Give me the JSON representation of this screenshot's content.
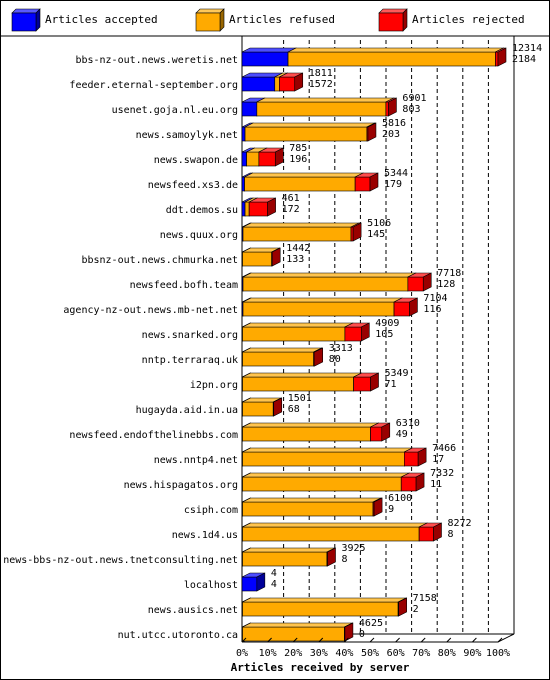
{
  "chart_data": {
    "type": "bar",
    "orientation": "horizontal",
    "stacked": true,
    "xlabel": "Articles received by server",
    "ylabel": "",
    "xlim": [
      0,
      100
    ],
    "x_unit": "%",
    "x_ticks": [
      "0%",
      "10%",
      "20%",
      "30%",
      "40%",
      "50%",
      "60%",
      "70%",
      "80%",
      "90%",
      "100%"
    ],
    "grid": true,
    "legend_position": "top",
    "categories": [
      "bbs-nz-out.news.weretis.net",
      "feeder.eternal-september.org",
      "usenet.goja.nl.eu.org",
      "news.samoylyk.net",
      "news.swapon.de",
      "newsfeed.xs3.de",
      "ddt.demos.su",
      "news.quux.org",
      "bbsnz-out.news.chmurka.net",
      "newsfeed.bofh.team",
      "agency-nz-out.news.mb-net.net",
      "news.snarked.org",
      "nntp.terraraq.uk",
      "i2pn.org",
      "hugayda.aid.in.ua",
      "newsfeed.endofthelinebbs.com",
      "news.nntp4.net",
      "news.hispagatos.org",
      "csiph.com",
      "news.1d4.us",
      "news-bbs-nz-out.news.tnetconsulting.net",
      "localhost",
      "news.ausics.net",
      "nut.utcc.utoronto.ca"
    ],
    "value_labels_top": [
      "12314",
      "1811",
      "6901",
      "5816",
      "785",
      "5344",
      "461",
      "5106",
      "1442",
      "7718",
      "7104",
      "4909",
      "3313",
      "5349",
      "1501",
      "6310",
      "7466",
      "7332",
      "6100",
      "8272",
      "3925",
      "4",
      "7158",
      "4625"
    ],
    "value_labels_bottom": [
      "2184",
      "1572",
      "803",
      "203",
      "196",
      "179",
      "172",
      "145",
      "133",
      "128",
      "116",
      "105",
      "80",
      "71",
      "68",
      "49",
      "17",
      "11",
      "9",
      "8",
      "8",
      "4",
      "2",
      "0"
    ],
    "series": [
      {
        "name": "Articles accepted",
        "color": "#0000ff",
        "values": [
          18,
          12.8,
          5.8,
          1.2,
          1.8,
          1.0,
          1.2,
          0.4,
          0.2,
          0.4,
          0.4,
          0.2,
          0.2,
          0.2,
          0.2,
          0.2,
          0.2,
          0.2,
          0.2,
          0.2,
          0.2,
          5.8,
          0.2,
          0.2
        ]
      },
      {
        "name": "Articles refused",
        "color": "#ffaa00",
        "values": [
          81.0,
          1.8,
          50.4,
          47.6,
          4.8,
          43.2,
          1.6,
          42.2,
          11.4,
          64.4,
          59.0,
          40.0,
          27.8,
          43.4,
          12.0,
          50.0,
          63.2,
          62.0,
          51.0,
          69.0,
          33.0,
          0,
          60.8,
          39.8
        ]
      },
      {
        "name": "Articles rejected",
        "color": "#ff0000",
        "values": [
          1.0,
          6.0,
          1.0,
          0.4,
          6.4,
          5.8,
          7.2,
          0.8,
          0.2,
          6.0,
          6.0,
          6.4,
          0.4,
          6.6,
          0.2,
          4.4,
          5.4,
          5.8,
          0.4,
          5.6,
          0.2,
          0,
          0.2,
          0.2
        ]
      }
    ]
  }
}
